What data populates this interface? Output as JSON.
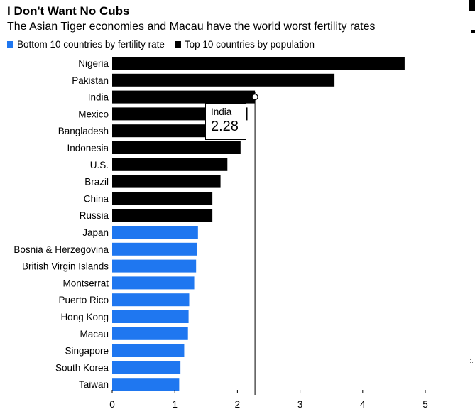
{
  "header": {
    "title": "I Don't Want No Cubs",
    "subtitle": "The Asian Tiger economies and Macau have the world worst fertility rates"
  },
  "legend": [
    {
      "label": "Bottom 10 countries by fertility rate",
      "color": "#1f77f0"
    },
    {
      "label": "Top 10 countries by population",
      "color": "#000000"
    }
  ],
  "tooltip": {
    "label": "India",
    "value": "2.28"
  },
  "chart_data": {
    "type": "bar",
    "orientation": "horizontal",
    "categories": [
      "Nigeria",
      "Pakistan",
      "India",
      "Mexico",
      "Bangladesh",
      "Indonesia",
      "U.S.",
      "Brazil",
      "China",
      "Russia",
      "Japan",
      "Bosnia & Herzegovina",
      "British Virgin Islands",
      "Montserrat",
      "Puerto Rico",
      "Hong Kong",
      "Macau",
      "Singapore",
      "South Korea",
      "Taiwan"
    ],
    "values": [
      4.67,
      3.55,
      2.28,
      2.16,
      2.05,
      2.05,
      1.84,
      1.73,
      1.6,
      1.6,
      1.37,
      1.35,
      1.34,
      1.31,
      1.23,
      1.22,
      1.21,
      1.15,
      1.09,
      1.07
    ],
    "groups": [
      "Top 10 countries by population",
      "Top 10 countries by population",
      "Top 10 countries by population",
      "Top 10 countries by population",
      "Top 10 countries by population",
      "Top 10 countries by population",
      "Top 10 countries by population",
      "Top 10 countries by population",
      "Top 10 countries by population",
      "Top 10 countries by population",
      "Bottom 10 countries by fertility rate",
      "Bottom 10 countries by fertility rate",
      "Bottom 10 countries by fertility rate",
      "Bottom 10 countries by fertility rate",
      "Bottom 10 countries by fertility rate",
      "Bottom 10 countries by fertility rate",
      "Bottom 10 countries by fertility rate",
      "Bottom 10 countries by fertility rate",
      "Bottom 10 countries by fertility rate",
      "Bottom 10 countries by fertility rate"
    ],
    "group_colors": {
      "Top 10 countries by population": "#000000",
      "Bottom 10 countries by fertility rate": "#1f77f0"
    },
    "xlim": [
      0,
      5
    ],
    "ticks": [
      "0",
      "1",
      "2",
      "3",
      "4",
      "5"
    ],
    "highlight": {
      "category": "India",
      "value": 2.28
    },
    "grid": false,
    "legend_position": "top-left"
  }
}
